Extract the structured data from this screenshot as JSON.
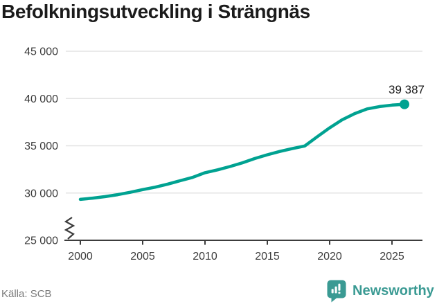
{
  "title": "Befolkningsutveckling i Strängnäs",
  "footer": {
    "source": "Källa: SCB",
    "brand": "Newsworthy"
  },
  "colors": {
    "line": "#00a291",
    "brand_teal": "#3a9a93",
    "grid": "#e3e3e3",
    "axis": "#3c3c3c",
    "tick_text": "#3c3c3c",
    "title_text": "#1b1b1b",
    "end_label_text": "#1b1b1b",
    "muted_text": "#7b7b7b"
  },
  "chart_data": {
    "type": "line",
    "title": "Befolkningsutveckling i Strängnäs",
    "xlabel": "",
    "ylabel": "",
    "ylim": [
      25000,
      45000
    ],
    "grid": "horizontal",
    "axis_break_bottom_left": true,
    "legend": "none",
    "x_ticks": [
      "2000",
      "2005",
      "2010",
      "2015",
      "2020",
      "2025"
    ],
    "x_tick_values": [
      2000,
      2005,
      2010,
      2015,
      2020,
      2025
    ],
    "y_ticks": [
      "45 000",
      "40 000",
      "35 000",
      "30 000",
      "25 000"
    ],
    "y_tick_values": [
      45000,
      40000,
      35000,
      30000,
      25000
    ],
    "x": [
      2000,
      2001,
      2002,
      2003,
      2004,
      2005,
      2006,
      2007,
      2008,
      2009,
      2010,
      2011,
      2012,
      2013,
      2014,
      2015,
      2016,
      2017,
      2018,
      2019,
      2020,
      2021,
      2022,
      2023,
      2024,
      2025,
      2026
    ],
    "values": [
      29330,
      29460,
      29620,
      29830,
      30080,
      30360,
      30620,
      30940,
      31300,
      31650,
      32150,
      32450,
      32800,
      33200,
      33650,
      34050,
      34400,
      34700,
      34980,
      35950,
      36900,
      37750,
      38400,
      38900,
      39150,
      39300,
      39387
    ],
    "end_value": 39387,
    "end_point_label": "39 387"
  }
}
